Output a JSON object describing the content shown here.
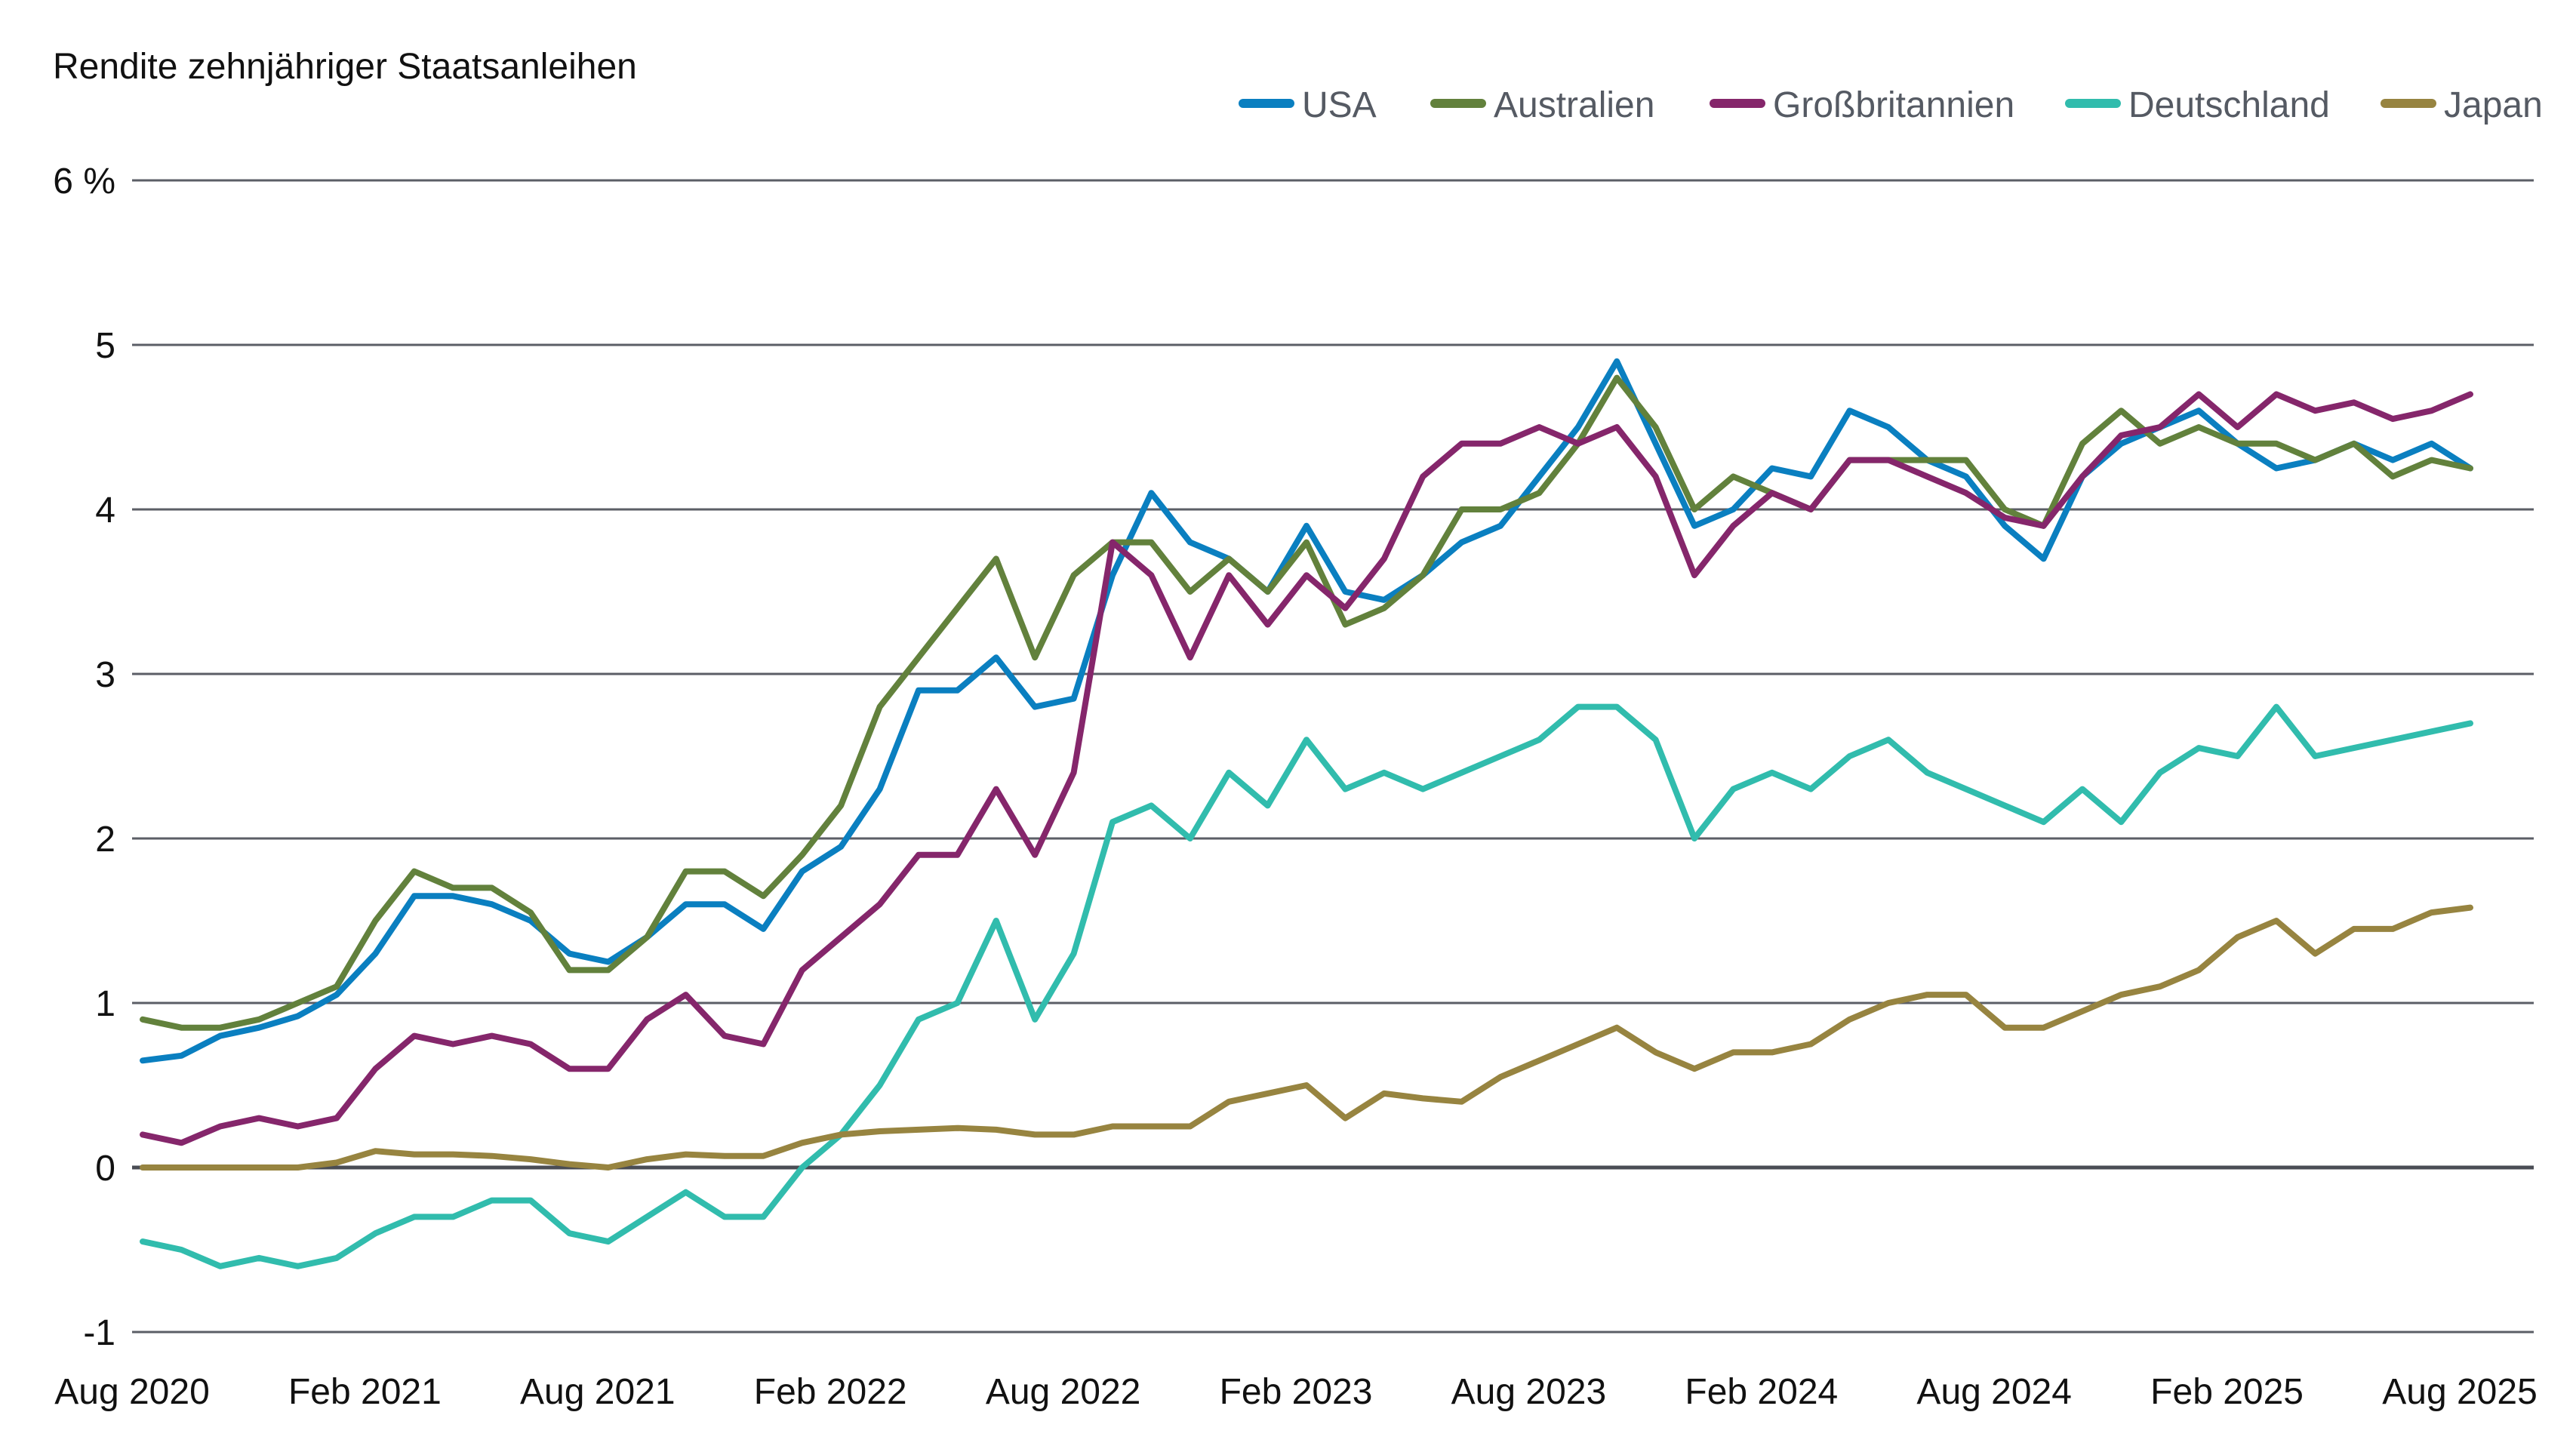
{
  "chart_data": {
    "type": "line",
    "title": "Rendite zehnjähriger Staatsanleihen",
    "ylabel": "",
    "xlabel": "",
    "ylim": [
      -1,
      6
    ],
    "y_ticks": [
      {
        "value": 6,
        "label": "6 %"
      },
      {
        "value": 5,
        "label": "5"
      },
      {
        "value": 4,
        "label": "4"
      },
      {
        "value": 3,
        "label": "3"
      },
      {
        "value": 2,
        "label": "2"
      },
      {
        "value": 1,
        "label": "1"
      },
      {
        "value": 0,
        "label": "0"
      },
      {
        "value": -1,
        "label": "-1"
      }
    ],
    "x_ticks": [
      {
        "value": "2020-08",
        "label": "Aug 2020"
      },
      {
        "value": "2021-02",
        "label": "Feb 2021"
      },
      {
        "value": "2021-08",
        "label": "Aug 2021"
      },
      {
        "value": "2022-02",
        "label": "Feb 2022"
      },
      {
        "value": "2022-08",
        "label": "Aug 2022"
      },
      {
        "value": "2023-02",
        "label": "Feb 2023"
      },
      {
        "value": "2023-08",
        "label": "Aug 2023"
      },
      {
        "value": "2024-02",
        "label": "Feb 2024"
      },
      {
        "value": "2024-08",
        "label": "Aug 2024"
      },
      {
        "value": "2025-02",
        "label": "Feb 2025"
      },
      {
        "value": "2025-08",
        "label": "Aug 2025"
      }
    ],
    "grid": true,
    "legend_position": "top-right",
    "x": [
      "2020-08",
      "2020-09",
      "2020-10",
      "2020-11",
      "2020-12",
      "2021-01",
      "2021-02",
      "2021-03",
      "2021-04",
      "2021-05",
      "2021-06",
      "2021-07",
      "2021-08",
      "2021-09",
      "2021-10",
      "2021-11",
      "2021-12",
      "2022-01",
      "2022-02",
      "2022-03",
      "2022-04",
      "2022-05",
      "2022-06",
      "2022-07",
      "2022-08",
      "2022-09",
      "2022-10",
      "2022-11",
      "2022-12",
      "2023-01",
      "2023-02",
      "2023-03",
      "2023-04",
      "2023-05",
      "2023-06",
      "2023-07",
      "2023-08",
      "2023-09",
      "2023-10",
      "2023-11",
      "2023-12",
      "2024-01",
      "2024-02",
      "2024-03",
      "2024-04",
      "2024-05",
      "2024-06",
      "2024-07",
      "2024-08",
      "2024-09",
      "2024-10",
      "2024-11",
      "2024-12",
      "2025-01",
      "2025-02",
      "2025-03",
      "2025-04",
      "2025-05",
      "2025-06",
      "2025-07",
      "2025-08"
    ],
    "series": [
      {
        "name": "USA",
        "color": "#0a7fc0",
        "values": [
          0.65,
          0.68,
          0.8,
          0.85,
          0.92,
          1.05,
          1.3,
          1.65,
          1.65,
          1.6,
          1.5,
          1.3,
          1.25,
          1.4,
          1.6,
          1.6,
          1.45,
          1.8,
          1.95,
          2.3,
          2.9,
          2.9,
          3.1,
          2.8,
          2.85,
          3.6,
          4.1,
          3.8,
          3.7,
          3.5,
          3.9,
          3.5,
          3.45,
          3.6,
          3.8,
          3.9,
          4.2,
          4.5,
          4.9,
          4.4,
          3.9,
          4.0,
          4.25,
          4.2,
          4.6,
          4.5,
          4.3,
          4.2,
          3.9,
          3.7,
          4.2,
          4.4,
          4.5,
          4.6,
          4.4,
          4.25,
          4.3,
          4.4,
          4.3,
          4.4,
          4.25
        ]
      },
      {
        "name": "Australien",
        "color": "#62813c",
        "values": [
          0.9,
          0.85,
          0.85,
          0.9,
          1.0,
          1.1,
          1.5,
          1.8,
          1.7,
          1.7,
          1.55,
          1.2,
          1.2,
          1.4,
          1.8,
          1.8,
          1.65,
          1.9,
          2.2,
          2.8,
          3.1,
          3.4,
          3.7,
          3.1,
          3.6,
          3.8,
          3.8,
          3.5,
          3.7,
          3.5,
          3.8,
          3.3,
          3.4,
          3.6,
          4.0,
          4.0,
          4.1,
          4.4,
          4.8,
          4.5,
          4.0,
          4.2,
          4.1,
          4.0,
          4.3,
          4.3,
          4.3,
          4.3,
          4.0,
          3.9,
          4.4,
          4.6,
          4.4,
          4.5,
          4.4,
          4.4,
          4.3,
          4.4,
          4.2,
          4.3,
          4.25
        ]
      },
      {
        "name": "Großbritannien",
        "color": "#85266b",
        "values": [
          0.2,
          0.15,
          0.25,
          0.3,
          0.25,
          0.3,
          0.6,
          0.8,
          0.75,
          0.8,
          0.75,
          0.6,
          0.6,
          0.9,
          1.05,
          0.8,
          0.75,
          1.2,
          1.4,
          1.6,
          1.9,
          1.9,
          2.3,
          1.9,
          2.4,
          3.8,
          3.6,
          3.1,
          3.6,
          3.3,
          3.6,
          3.4,
          3.7,
          4.2,
          4.4,
          4.4,
          4.5,
          4.4,
          4.5,
          4.2,
          3.6,
          3.9,
          4.1,
          4.0,
          4.3,
          4.3,
          4.2,
          4.1,
          3.95,
          3.9,
          4.2,
          4.45,
          4.5,
          4.7,
          4.5,
          4.7,
          4.6,
          4.65,
          4.55,
          4.6,
          4.7
        ]
      },
      {
        "name": "Deutschland",
        "color": "#31bcad",
        "values": [
          -0.45,
          -0.5,
          -0.6,
          -0.55,
          -0.6,
          -0.55,
          -0.4,
          -0.3,
          -0.3,
          -0.2,
          -0.2,
          -0.4,
          -0.45,
          -0.3,
          -0.15,
          -0.3,
          -0.3,
          0.0,
          0.2,
          0.5,
          0.9,
          1.0,
          1.5,
          0.9,
          1.3,
          2.1,
          2.2,
          2.0,
          2.4,
          2.2,
          2.6,
          2.3,
          2.4,
          2.3,
          2.4,
          2.5,
          2.6,
          2.8,
          2.8,
          2.6,
          2.0,
          2.3,
          2.4,
          2.3,
          2.5,
          2.6,
          2.4,
          2.3,
          2.2,
          2.1,
          2.3,
          2.1,
          2.4,
          2.55,
          2.5,
          2.8,
          2.5,
          2.55,
          2.6,
          2.65,
          2.7
        ]
      },
      {
        "name": "Japan",
        "color": "#978440",
        "values": [
          0.0,
          0.0,
          0.0,
          0.0,
          0.0,
          0.03,
          0.1,
          0.08,
          0.08,
          0.07,
          0.05,
          0.02,
          0.0,
          0.05,
          0.08,
          0.07,
          0.07,
          0.15,
          0.2,
          0.22,
          0.23,
          0.24,
          0.23,
          0.2,
          0.2,
          0.25,
          0.25,
          0.25,
          0.4,
          0.45,
          0.5,
          0.3,
          0.45,
          0.42,
          0.4,
          0.55,
          0.65,
          0.75,
          0.85,
          0.7,
          0.6,
          0.7,
          0.7,
          0.75,
          0.9,
          1.0,
          1.05,
          1.05,
          0.85,
          0.85,
          0.95,
          1.05,
          1.1,
          1.2,
          1.4,
          1.5,
          1.3,
          1.45,
          1.45,
          1.55,
          1.58
        ]
      }
    ]
  }
}
